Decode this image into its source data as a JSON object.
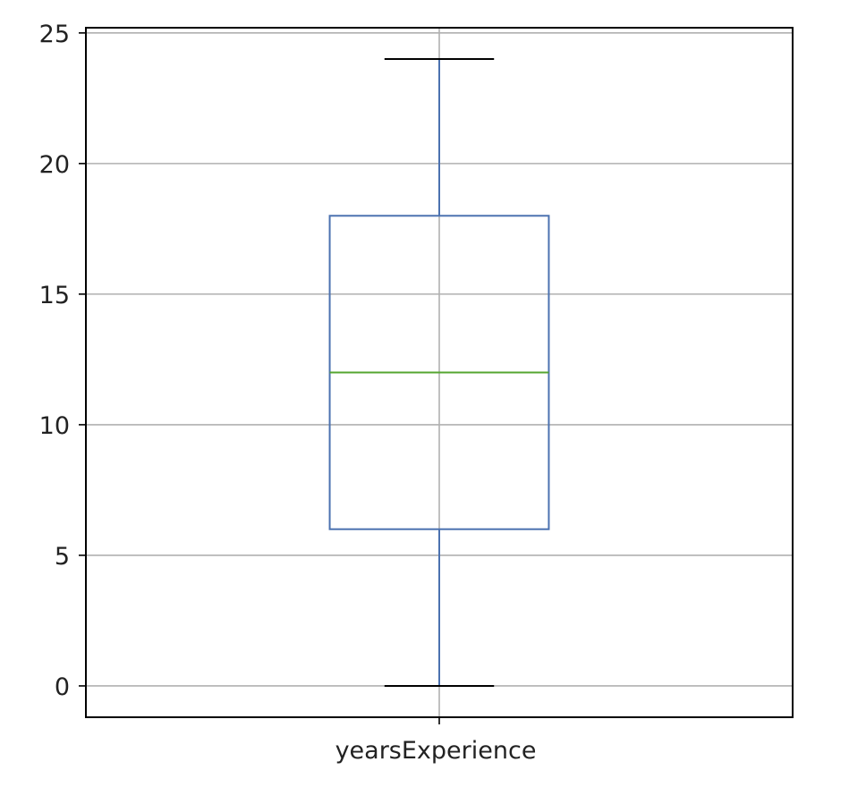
{
  "chart_data": {
    "type": "box",
    "categories": [
      "yearsExperience"
    ],
    "series": [
      {
        "category": "yearsExperience",
        "whisker_low": 0,
        "q1": 6,
        "median": 12,
        "q3": 18,
        "whisker_high": 24
      }
    ],
    "ylim": [
      -1.2,
      25.2
    ],
    "yticks": [
      0,
      5,
      10,
      15,
      20,
      25
    ],
    "ytick_labels": [
      "0",
      "5",
      "10",
      "15",
      "20",
      "25"
    ],
    "grid": true,
    "colors": {
      "box": "#4c72b0",
      "whisker": "#4c72b0",
      "cap": "#000000",
      "median": "#55a630",
      "grid": "#b0b0b0",
      "frame": "#000000"
    }
  }
}
